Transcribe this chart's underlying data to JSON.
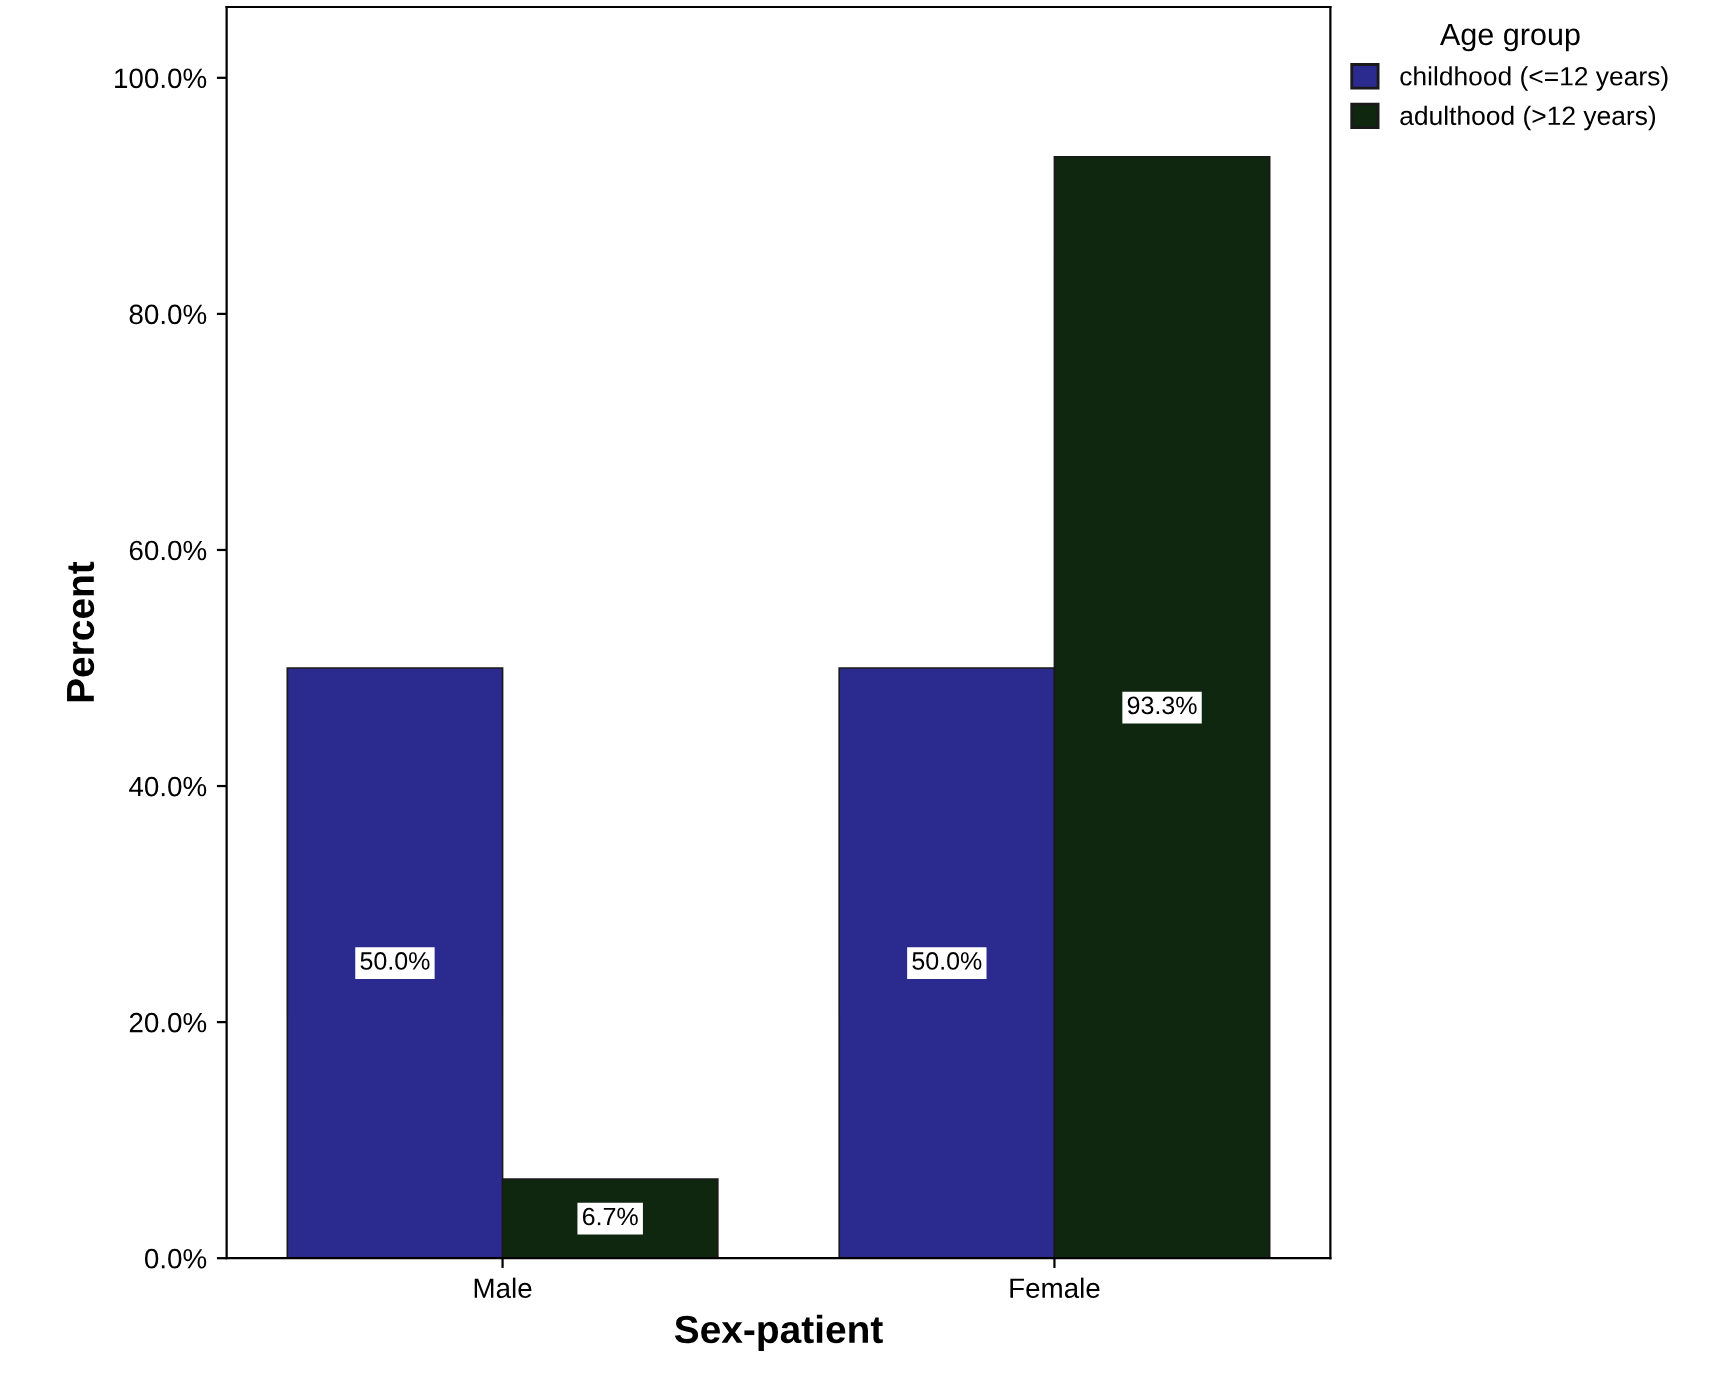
{
  "chart_data": {
    "type": "bar",
    "xlabel": "Sex-patient",
    "ylabel": "Percent",
    "legend_title": "Age group",
    "categories": [
      "Male",
      "Female"
    ],
    "series": [
      {
        "name": "childhood (<=12 years)",
        "color": "#2b2b8f",
        "values": [
          50.0,
          50.0
        ],
        "value_labels": [
          "50.0%",
          "50.0%"
        ]
      },
      {
        "name": "adulthood (>12 years)",
        "color": "#0f260f",
        "values": [
          6.7,
          93.3
        ],
        "value_labels": [
          "6.7%",
          "93.3%"
        ]
      }
    ],
    "ylim": [
      0,
      106
    ],
    "yticks": [
      {
        "value": 0,
        "label": "0.0%"
      },
      {
        "value": 20,
        "label": "20.0%"
      },
      {
        "value": 40,
        "label": "40.0%"
      },
      {
        "value": 60,
        "label": "60.0%"
      },
      {
        "value": 80,
        "label": "80.0%"
      },
      {
        "value": 100,
        "label": "100.0%"
      }
    ],
    "grid": false,
    "legend": "top right"
  }
}
